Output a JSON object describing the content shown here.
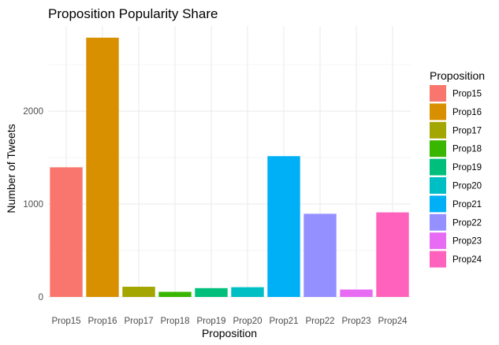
{
  "chart_data": {
    "type": "bar",
    "title": "Proposition Popularity Share",
    "xlabel": "Proposition",
    "ylabel": "Number of Tweets",
    "categories": [
      "Prop15",
      "Prop16",
      "Prop17",
      "Prop18",
      "Prop19",
      "Prop20",
      "Prop21",
      "Prop22",
      "Prop23",
      "Prop24"
    ],
    "values": [
      1395,
      2790,
      110,
      55,
      95,
      105,
      1515,
      895,
      80,
      910
    ],
    "colors": [
      "#F8766D",
      "#D89000",
      "#A3A500",
      "#39B600",
      "#00BF7D",
      "#00BFC4",
      "#00B0F6",
      "#9590FF",
      "#E76BF3",
      "#FF62BC"
    ],
    "ylim": [
      0,
      2790
    ],
    "yticks": [
      0,
      1000,
      2000
    ],
    "grid": true,
    "legend": {
      "title": "Proposition",
      "position": "right"
    }
  }
}
